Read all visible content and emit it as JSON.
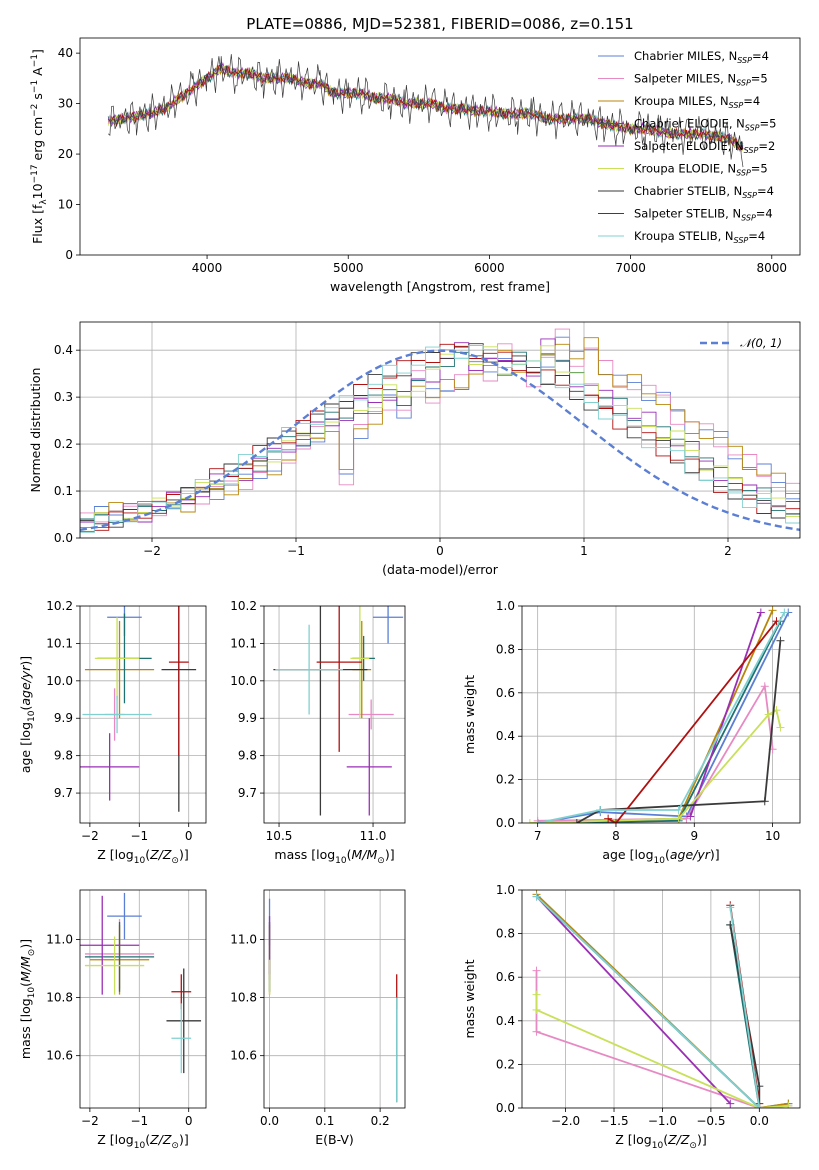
{
  "figure_title": "PLATE=0886, MJD=52381, FIBERID=0086, z=0.151",
  "colors": [
    "#5b7fd4",
    "#e78ac3",
    "#b8860b",
    "#1f7070",
    "#9a2fb5",
    "#c8e05a",
    "#3a3a3a",
    "#b01010",
    "#80d0d0"
  ],
  "legend_sub": [
    "SSP",
    "SSP",
    "SSP",
    "SSP",
    "SSP",
    "SSP",
    "SSP",
    "SSP",
    "SSP"
  ],
  "chart_data": [
    {
      "id": "spectrum",
      "type": "line",
      "xlabel": "wavelength [Angstrom, rest frame]",
      "ylabel": "Flux [f",
      "ylabel_sub": "λ",
      "ylabel_tail": "10",
      "ylabel_sup1": "−17",
      "ylabel_mid": " erg cm",
      "ylabel_sup2": "−2",
      "ylabel_mid2": " s",
      "ylabel_sup3": "−1",
      "ylabel_mid3": " A",
      "ylabel_sup4": "−1",
      "ylabel_end": "]",
      "xlim": [
        3100,
        8200
      ],
      "ylim": [
        0,
        43
      ],
      "xticks": [
        4000,
        5000,
        6000,
        7000,
        8000
      ],
      "yticks": [
        0,
        10,
        20,
        30,
        40
      ],
      "legend": [
        {
          "name": "Chabrier MILES, N",
          "n": "=4"
        },
        {
          "name": "Salpeter MILES, N",
          "n": "=5"
        },
        {
          "name": "Kroupa MILES, N",
          "n": "=4"
        },
        {
          "name": "Chabrier ELODIE, N",
          "n": "=5"
        },
        {
          "name": "Salpeter ELODIE, N",
          "n": "=2"
        },
        {
          "name": "Kroupa ELODIE, N",
          "n": "=5"
        },
        {
          "name": "Chabrier STELIB, N",
          "n": "=4"
        },
        {
          "name": "Salpeter STELIB, N",
          "n": "=4"
        },
        {
          "name": "Kroupa STELIB, N",
          "n": "=4"
        }
      ],
      "data_x": [
        3300,
        3400,
        3500,
        3600,
        3700,
        3800,
        3900,
        4000,
        4100,
        4200,
        4300,
        4400,
        4500,
        4600,
        4700,
        4800,
        4900,
        5000,
        5100,
        5200,
        5300,
        5400,
        5500,
        5600,
        5700,
        5800,
        5900,
        6000,
        6100,
        6200,
        6300,
        6400,
        6500,
        6600,
        6700,
        6800,
        6900,
        7000,
        7100,
        7200,
        7300,
        7400,
        7500,
        7600,
        7700,
        7800
      ],
      "data_y": [
        26.5,
        27,
        27.5,
        28,
        29,
        31,
        33,
        35,
        37,
        36,
        36,
        35,
        35,
        35,
        34,
        34,
        32,
        32,
        32,
        31,
        31,
        30,
        30,
        30,
        29,
        29,
        28.5,
        28.5,
        28,
        28,
        28,
        27,
        27,
        27,
        27,
        26,
        25.5,
        25,
        25,
        24.5,
        24,
        24,
        24,
        23.5,
        23,
        21
      ]
    },
    {
      "id": "residuals",
      "type": "bar",
      "xlabel": "(data-model)/error",
      "ylabel": "Normed distribution",
      "xlim": [
        -2.5,
        2.5
      ],
      "ylim": [
        0,
        0.46
      ],
      "xticks": [
        -2,
        -1,
        0,
        1,
        2
      ],
      "yticks": [
        0.0,
        0.1,
        0.2,
        0.3,
        0.4
      ],
      "legend": "𝒩(0, 1)",
      "bin_width": 0.1,
      "bin_start": -2.5,
      "series": [
        {
          "values": [
            0.04,
            0.05,
            0.06,
            0.05,
            0.06,
            0.06,
            0.08,
            0.07,
            0.09,
            0.1,
            0.11,
            0.12,
            0.14,
            0.15,
            0.17,
            0.2,
            0.22,
            0.24,
            0.13,
            0.23,
            0.26,
            0.29,
            0.27,
            0.34,
            0.3,
            0.32,
            0.33,
            0.36,
            0.35,
            0.4,
            0.37,
            0.34,
            0.38,
            0.43,
            0.38,
            0.41,
            0.36,
            0.33,
            0.33,
            0.31,
            0.3,
            0.26,
            0.24,
            0.23,
            0.21,
            0.18,
            0.16,
            0.14,
            0.12,
            0.1
          ]
        },
        {
          "values": [
            0.03,
            0.04,
            0.05,
            0.06,
            0.05,
            0.07,
            0.08,
            0.09,
            0.1,
            0.12,
            0.13,
            0.14,
            0.16,
            0.18,
            0.2,
            0.21,
            0.23,
            0.25,
            0.26,
            0.28,
            0.29,
            0.31,
            0.3,
            0.33,
            0.35,
            0.38,
            0.4,
            0.37,
            0.39,
            0.36,
            0.38,
            0.36,
            0.41,
            0.37,
            0.34,
            0.32,
            0.3,
            0.28,
            0.26,
            0.25,
            0.22,
            0.21,
            0.19,
            0.16,
            0.14,
            0.12,
            0.1,
            0.09,
            0.07,
            0.06
          ]
        },
        {
          "values": [
            0.02,
            0.03,
            0.04,
            0.05,
            0.06,
            0.07,
            0.08,
            0.09,
            0.11,
            0.13,
            0.14,
            0.16,
            0.18,
            0.2,
            0.22,
            0.24,
            0.26,
            0.27,
            0.29,
            0.31,
            0.33,
            0.35,
            0.36,
            0.38,
            0.39,
            0.4,
            0.4,
            0.4,
            0.39,
            0.38,
            0.37,
            0.36,
            0.34,
            0.33,
            0.31,
            0.29,
            0.27,
            0.25,
            0.23,
            0.21,
            0.19,
            0.17,
            0.15,
            0.13,
            0.11,
            0.1,
            0.08,
            0.07,
            0.06,
            0.05
          ]
        }
      ],
      "gauss": true
    },
    {
      "id": "age-vs-Z",
      "type": "scatter",
      "xlabel": "Z [log",
      "xlabel_sub": "10",
      "xlabel_mid": "(",
      "xlabel_it": "Z/Z",
      "xlabel_sub2": "⊙",
      "xlabel_end": ")]",
      "ylabel": "age  [log",
      "ylabel_sub": "10",
      "ylabel_mid": "(",
      "ylabel_it": "age/yr",
      "ylabel_end": ")]",
      "xlim": [
        -2.2,
        0.35
      ],
      "ylim": [
        9.62,
        10.2
      ],
      "xticks": [
        -2,
        -1,
        0
      ],
      "yticks": [
        9.7,
        9.8,
        9.9,
        10.0,
        10.1,
        10.2
      ],
      "points": [
        {
          "x": -1.3,
          "xerr": 0.35,
          "y": 10.17,
          "yerr": 0.05
        },
        {
          "x": -1.5,
          "xerr": 0.2,
          "y": 9.91,
          "yerr": 0.07
        },
        {
          "x": -1.4,
          "xerr": 0.7,
          "y": 10.03,
          "yerr": 0.13
        },
        {
          "x": -1.3,
          "xerr": 0.55,
          "y": 10.06,
          "yerr": 0.12
        },
        {
          "x": -1.6,
          "xerr": 0.6,
          "y": 9.77,
          "yerr": 0.09
        },
        {
          "x": -1.45,
          "xerr": 0.45,
          "y": 10.06,
          "yerr": 0.11
        },
        {
          "x": -0.2,
          "xerr": 0.35,
          "y": 10.03,
          "yerr": 0.38
        },
        {
          "x": -0.2,
          "xerr": 0.2,
          "y": 10.05,
          "yerr": 0.25
        },
        {
          "x": -1.45,
          "xerr": 0.7,
          "y": 9.91,
          "yerr": 0.05
        }
      ]
    },
    {
      "id": "age-vs-mass",
      "type": "scatter",
      "xlabel": "mass [log",
      "xlabel_sub": "10",
      "xlabel_mid": "(",
      "xlabel_it": "M/M",
      "xlabel_sub2": "⊙",
      "xlabel_end": ")]",
      "xlim": [
        10.42,
        11.17
      ],
      "ylim": [
        9.62,
        10.2
      ],
      "xticks": [
        10.5,
        11.0
      ],
      "yticks": [
        9.7,
        9.8,
        9.9,
        10.0,
        10.1,
        10.2
      ],
      "points": [
        {
          "x": 11.08,
          "xerr": 0.08,
          "y": 10.17,
          "yerr": 0.07
        },
        {
          "x": 10.99,
          "xerr": 0.12,
          "y": 9.91,
          "yerr": 0.04
        },
        {
          "x": 10.94,
          "xerr": 0.05,
          "y": 10.03,
          "yerr": 0.13
        },
        {
          "x": 10.95,
          "xerr": 0.06,
          "y": 10.06,
          "yerr": 0.06
        },
        {
          "x": 10.98,
          "xerr": 0.12,
          "y": 9.77,
          "yerr": 0.13
        },
        {
          "x": 10.93,
          "xerr": 0.05,
          "y": 10.06,
          "yerr": 0.16
        },
        {
          "x": 10.72,
          "xerr": 0.25,
          "y": 10.03,
          "yerr": 0.39
        },
        {
          "x": 10.82,
          "xerr": 0.12,
          "y": 10.05,
          "yerr": 0.24
        },
        {
          "x": 10.66,
          "xerr": 0.18,
          "y": 10.03,
          "yerr": 0.12
        }
      ]
    },
    {
      "id": "mass-weight-vs-age",
      "type": "line",
      "xlabel": "age  [log",
      "xlabel_sub": "10",
      "xlabel_mid": "(",
      "xlabel_it": "age/yr",
      "xlabel_end": ")]",
      "ylabel": "mass weight",
      "xlim": [
        6.8,
        10.35
      ],
      "ylim": [
        0,
        1
      ],
      "xticks": [
        7,
        8,
        9,
        10
      ],
      "yticks": [
        0.0,
        0.2,
        0.4,
        0.6,
        0.8,
        1.0
      ],
      "series": [
        {
          "x": [
            7.0,
            7.8,
            8.9,
            10.2
          ],
          "y": [
            0.0,
            0.05,
            0.03,
            0.97
          ]
        },
        {
          "x": [
            7.0,
            8.9,
            9.9,
            10.0
          ],
          "y": [
            0.01,
            0.02,
            0.63,
            0.34
          ]
        },
        {
          "x": [
            7.0,
            8.8,
            10.0
          ],
          "y": [
            0.0,
            0.02,
            0.98
          ]
        },
        {
          "x": [
            7.0,
            8.8,
            10.1
          ],
          "y": [
            0.0,
            0.01,
            0.93
          ]
        },
        {
          "x": [
            8.95,
            9.85
          ],
          "y": [
            0.03,
            0.97
          ]
        },
        {
          "x": [
            6.9,
            8.8,
            9.95,
            10.05,
            10.1
          ],
          "y": [
            0.0,
            0.02,
            0.5,
            0.52,
            0.44
          ]
        },
        {
          "x": [
            7.5,
            7.8,
            9.9,
            10.1
          ],
          "y": [
            0.0,
            0.06,
            0.1,
            0.84
          ]
        },
        {
          "x": [
            7.9,
            8.0,
            10.05
          ],
          "y": [
            0.02,
            0.0,
            0.93
          ]
        },
        {
          "x": [
            7.0,
            7.8,
            8.8,
            10.15
          ],
          "y": [
            0.0,
            0.06,
            0.06,
            0.97
          ]
        }
      ]
    },
    {
      "id": "mass-vs-Z",
      "type": "scatter",
      "xlabel": "Z [log",
      "xlabel_sub": "10",
      "xlabel_mid": "(",
      "xlabel_it": "Z/Z",
      "xlabel_sub2": "⊙",
      "xlabel_end": ")]",
      "ylabel": "mass [log",
      "ylabel_sub": "10",
      "ylabel_mid": "(",
      "ylabel_it": "M/M",
      "ylabel_sub2": "⊙",
      "ylabel_end": ")]",
      "xlim": [
        -2.2,
        0.35
      ],
      "ylim": [
        10.42,
        11.17
      ],
      "xticks": [
        -2,
        -1,
        0
      ],
      "yticks": [
        10.6,
        10.8,
        11.0
      ],
      "points": [
        {
          "x": -1.3,
          "xerr": 0.35,
          "y": 11.08,
          "yerr": 0.08
        },
        {
          "x": -1.4,
          "xerr": 0.7,
          "y": 10.95,
          "yerr": 0.12
        },
        {
          "x": -1.4,
          "xerr": 0.6,
          "y": 10.93,
          "yerr": 0.12
        },
        {
          "x": -1.4,
          "xerr": 0.7,
          "y": 10.94,
          "yerr": 0.12
        },
        {
          "x": -1.75,
          "xerr": 0.75,
          "y": 10.98,
          "yerr": 0.17
        },
        {
          "x": -1.5,
          "xerr": 0.6,
          "y": 10.91,
          "yerr": 0.1
        },
        {
          "x": -0.1,
          "xerr": 0.35,
          "y": 10.72,
          "yerr": 0.18
        },
        {
          "x": -0.15,
          "xerr": 0.2,
          "y": 10.82,
          "yerr": 0.06
        },
        {
          "x": -0.15,
          "xerr": 0.2,
          "y": 10.66,
          "yerr": 0.12
        }
      ]
    },
    {
      "id": "mass-vs-EBV",
      "type": "scatter",
      "xlabel": "E(B-V)",
      "xlim": [
        -0.01,
        0.245
      ],
      "ylim": [
        10.42,
        11.17
      ],
      "xticks": [
        0.0,
        0.1,
        0.2
      ],
      "yticks": [
        10.6,
        10.8,
        11.0
      ],
      "points": [
        {
          "x": 0.0,
          "xerr": 0.0,
          "y": 11.06,
          "yerr": 0.08
        },
        {
          "x": 0.0,
          "xerr": 0.0,
          "y": 10.96,
          "yerr": 0.1
        },
        {
          "x": 0.0,
          "xerr": 0.0,
          "y": 10.93,
          "yerr": 0.12
        },
        {
          "x": 0.0,
          "xerr": 0.0,
          "y": 10.94,
          "yerr": 0.12
        },
        {
          "x": 0.0,
          "xerr": 0.0,
          "y": 10.98,
          "yerr": 0.1
        },
        {
          "x": 0.0,
          "xerr": 0.0,
          "y": 10.87,
          "yerr": 0.06
        },
        {
          "x": 0.23,
          "xerr": 0.0,
          "y": 10.62,
          "yerr": 0.18
        },
        {
          "x": 0.23,
          "xerr": 0.0,
          "y": 10.82,
          "yerr": 0.06
        },
        {
          "x": 0.23,
          "xerr": 0.0,
          "y": 10.62,
          "yerr": 0.18
        }
      ]
    },
    {
      "id": "mass-weight-vs-Z",
      "type": "line",
      "xlabel": "Z [log",
      "xlabel_sub": "10",
      "xlabel_mid": "(",
      "xlabel_it": "Z/Z",
      "xlabel_sub2": "⊙",
      "xlabel_end": ")]",
      "ylabel": "mass weight",
      "xlim": [
        -2.45,
        0.42
      ],
      "ylim": [
        0,
        1
      ],
      "xticks": [
        -2.0,
        -1.5,
        -1.0,
        -0.5,
        0.0
      ],
      "xtick_labels": [
        "−2.0",
        "−1.5",
        "−1.0",
        "−0.5",
        "0.0"
      ],
      "yticks": [
        0.0,
        0.2,
        0.4,
        0.6,
        0.8,
        1.0
      ],
      "series": [
        {
          "x": [
            -2.3,
            0.0,
            0.3
          ],
          "y": [
            0.97,
            0.0,
            0.02
          ]
        },
        {
          "x": [
            -2.3,
            -2.3,
            0.0,
            0.3
          ],
          "y": [
            0.63,
            0.35,
            0.0,
            0.01
          ]
        },
        {
          "x": [
            -2.3,
            0.0,
            0.3
          ],
          "y": [
            0.98,
            0.0,
            0.02
          ]
        },
        {
          "x": [
            -2.3,
            0.0,
            -0.3
          ],
          "y": [
            0.97,
            0.0,
            0.84
          ]
        },
        {
          "x": [
            -2.3,
            -0.3
          ],
          "y": [
            0.97,
            0.02
          ]
        },
        {
          "x": [
            -2.3,
            -2.3,
            0.0,
            0.3
          ],
          "y": [
            0.52,
            0.45,
            0.0,
            0.01
          ]
        },
        {
          "x": [
            -0.3,
            0.0,
            0.0
          ],
          "y": [
            0.84,
            0.1,
            0.0
          ]
        },
        {
          "x": [
            -0.3,
            0.0
          ],
          "y": [
            0.93,
            0.02
          ]
        },
        {
          "x": [
            -2.3,
            0.0,
            -0.3
          ],
          "y": [
            0.97,
            0.0,
            0.92
          ]
        }
      ]
    }
  ]
}
